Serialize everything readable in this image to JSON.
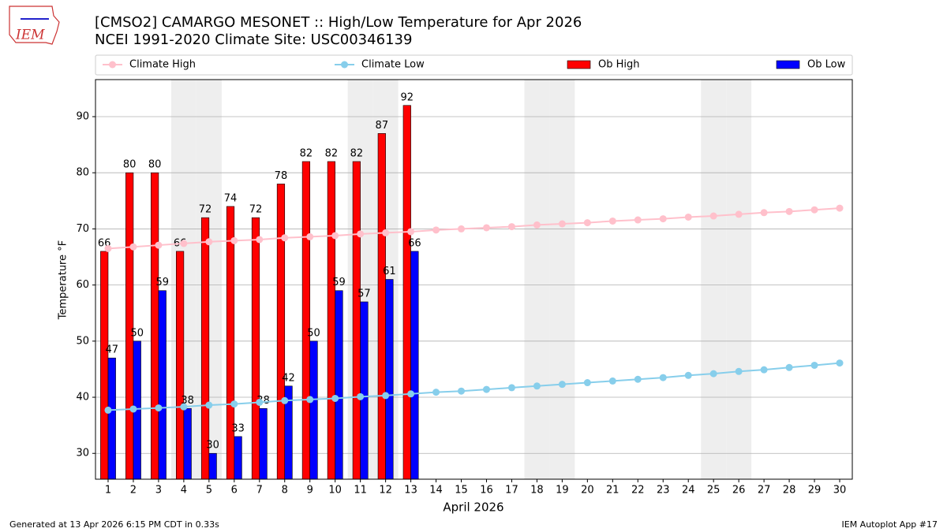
{
  "logo_text": "IEM",
  "footer_left": "Generated at 13 Apr 2026 6:15 PM CDT in 0.33s",
  "footer_right": "IEM Autoplot App #17",
  "chart_data": {
    "type": "bar",
    "title": "[CMSO2] CAMARGO MESONET :: High/Low Temperature for Apr 2026",
    "subtitle": "NCEI 1991-2020 Climate Site: USC00346139",
    "xlabel": "April 2026",
    "ylabel": "Temperature °F",
    "x": [
      1,
      2,
      3,
      4,
      5,
      6,
      7,
      8,
      9,
      10,
      11,
      12,
      13,
      14,
      15,
      16,
      17,
      18,
      19,
      20,
      21,
      22,
      23,
      24,
      25,
      26,
      27,
      28,
      29,
      30
    ],
    "xlim": [
      0.5,
      30.5
    ],
    "ylim": [
      25.4,
      96.6
    ],
    "yticks": [
      30,
      40,
      50,
      60,
      70,
      80,
      90
    ],
    "grid": true,
    "weekend_shading": true,
    "series": [
      {
        "name": "Climate High",
        "type": "line",
        "color": "#ffc0cb",
        "values": [
          66.5,
          66.8,
          67.1,
          67.4,
          67.7,
          67.9,
          68.1,
          68.4,
          68.6,
          68.8,
          69.1,
          69.3,
          69.5,
          69.8,
          70.0,
          70.2,
          70.4,
          70.7,
          70.9,
          71.1,
          71.4,
          71.6,
          71.8,
          72.1,
          72.3,
          72.6,
          72.9,
          73.1,
          73.4,
          73.7
        ]
      },
      {
        "name": "Climate Low",
        "type": "line",
        "color": "#87ceeb",
        "values": [
          37.7,
          37.9,
          38.1,
          38.3,
          38.6,
          38.8,
          39.1,
          39.4,
          39.6,
          39.8,
          40.1,
          40.3,
          40.6,
          40.9,
          41.1,
          41.4,
          41.7,
          42.0,
          42.3,
          42.6,
          42.9,
          43.2,
          43.5,
          43.9,
          44.2,
          44.6,
          44.9,
          45.3,
          45.7,
          46.1
        ]
      },
      {
        "name": "Ob High",
        "type": "bar",
        "color": "#ff0000",
        "values": [
          66,
          80,
          80,
          66,
          72,
          74,
          72,
          78,
          82,
          82,
          82,
          87,
          92,
          null,
          null,
          null,
          null,
          null,
          null,
          null,
          null,
          null,
          null,
          null,
          null,
          null,
          null,
          null,
          null,
          null
        ]
      },
      {
        "name": "Ob Low",
        "type": "bar",
        "color": "#0000ff",
        "values": [
          47,
          50,
          59,
          38,
          30,
          33,
          38,
          42,
          50,
          59,
          57,
          61,
          66,
          null,
          null,
          null,
          null,
          null,
          null,
          null,
          null,
          null,
          null,
          null,
          null,
          null,
          null,
          null,
          null,
          null
        ]
      }
    ]
  }
}
